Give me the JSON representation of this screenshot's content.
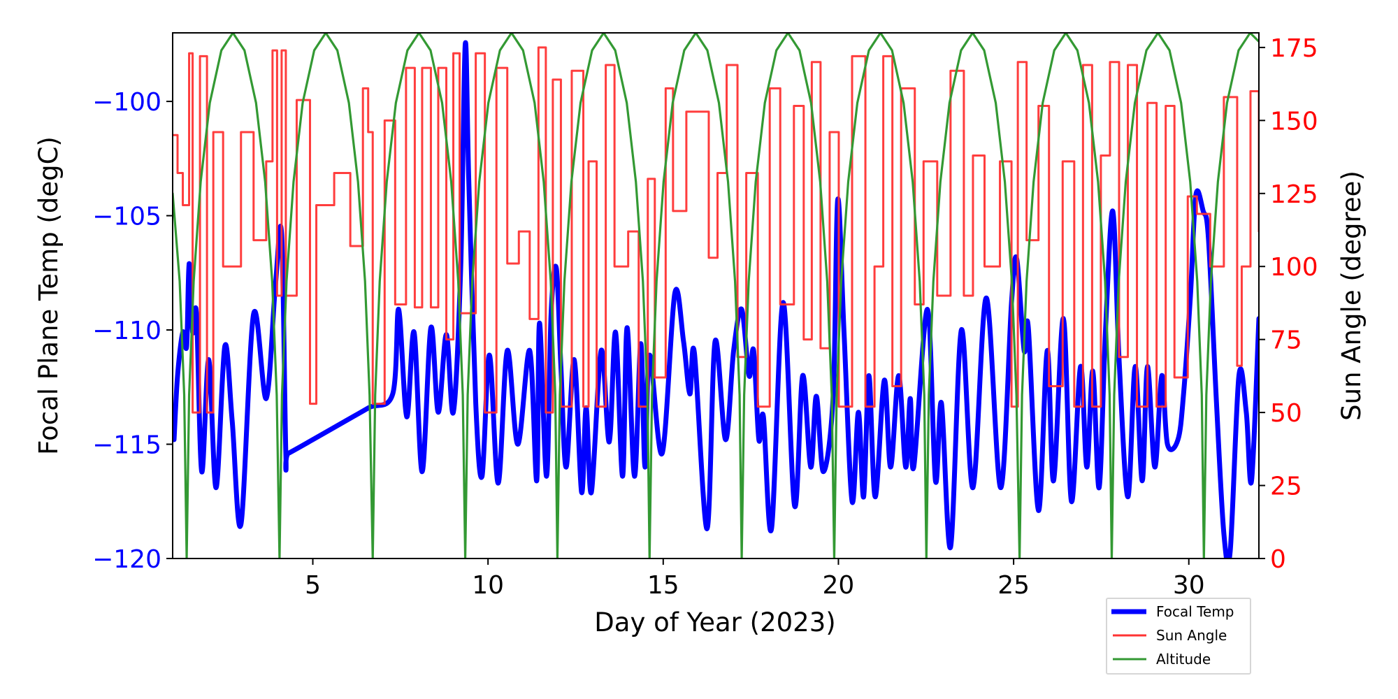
{
  "chart_data": {
    "type": "line",
    "xlabel": "Day of Year (2023)",
    "ylabel_left": "Focal Plane Temp (degC)",
    "ylabel_right": "Sun Angle (degree)",
    "xlim": [
      1,
      32
    ],
    "ylim_left": [
      -120,
      -97
    ],
    "ylim_right": [
      0,
      180
    ],
    "xticks": [
      5,
      10,
      15,
      20,
      25,
      30
    ],
    "yticks_left": [
      -120,
      -115,
      -110,
      -105,
      -100
    ],
    "yticks_right": [
      0,
      25,
      50,
      75,
      100,
      125,
      150,
      175
    ],
    "grid": false,
    "legend_position": "below-right",
    "colors": {
      "focal": "#0000ff",
      "sun": "#ff3333",
      "altitude": "#339933",
      "left_axis": "#0000ff",
      "right_axis": "#ff0000"
    },
    "series": [
      {
        "name": "Focal Temp",
        "axis": "left",
        "style": "line",
        "x": [
          1.04,
          1.14,
          1.29,
          1.4,
          1.47,
          1.57,
          1.68,
          1.83,
          2.03,
          2.24,
          2.49,
          2.7,
          2.95,
          3.31,
          3.67,
          3.93,
          4.11,
          4.23,
          4.3,
          5.0,
          5.8,
          6.6,
          7.28,
          7.45,
          7.68,
          7.89,
          8.12,
          8.37,
          8.58,
          8.81,
          9.01,
          9.22,
          9.35,
          9.45,
          9.65,
          9.83,
          10.04,
          10.29,
          10.55,
          10.85,
          11.19,
          11.39,
          11.47,
          11.67,
          11.8,
          11.95,
          12.08,
          12.23,
          12.46,
          12.67,
          12.8,
          12.95,
          13.23,
          13.46,
          13.64,
          13.84,
          13.97,
          14.18,
          14.36,
          14.48,
          14.61,
          14.97,
          15.33,
          15.58,
          15.76,
          15.89,
          16.25,
          16.48,
          16.78,
          17.01,
          17.24,
          17.45,
          17.58,
          17.73,
          17.86,
          18.09,
          18.42,
          18.75,
          18.98,
          19.21,
          19.37,
          19.57,
          19.85,
          19.98,
          20.16,
          20.39,
          20.57,
          20.72,
          20.87,
          21.05,
          21.31,
          21.49,
          21.72,
          21.92,
          22.05,
          22.15,
          22.54,
          22.77,
          22.94,
          23.2,
          23.51,
          23.84,
          24.22,
          24.63,
          24.94,
          25.09,
          25.3,
          25.42,
          25.71,
          25.96,
          26.14,
          26.42,
          26.65,
          26.91,
          27.09,
          27.26,
          27.44,
          27.62,
          27.83,
          28.01,
          28.26,
          28.47,
          28.67,
          28.82,
          29.03,
          29.23,
          29.39,
          29.69,
          29.85,
          30.05,
          30.2,
          30.41,
          30.56,
          30.79,
          31.0,
          31.18,
          31.43,
          31.64,
          31.79,
          32.0
        ],
        "y": [
          -114.8,
          -112.0,
          -110.1,
          -110.7,
          -107.1,
          -110.1,
          -109.3,
          -116.2,
          -111.3,
          -116.9,
          -110.7,
          -114.0,
          -118.5,
          -109.3,
          -113.0,
          -108.1,
          -105.8,
          -115.4,
          -115.4,
          -114.8,
          -114.1,
          -113.4,
          -112.8,
          -109.1,
          -113.8,
          -110.1,
          -116.2,
          -109.9,
          -113.6,
          -110.2,
          -113.6,
          -107.3,
          -97.5,
          -103.4,
          -113.2,
          -116.4,
          -111.1,
          -116.7,
          -110.9,
          -115.0,
          -110.9,
          -116.6,
          -109.7,
          -116.4,
          -109.3,
          -107.3,
          -111.6,
          -116.0,
          -111.3,
          -117.1,
          -113.4,
          -117.1,
          -110.9,
          -114.9,
          -110.1,
          -116.4,
          -109.9,
          -116.4,
          -110.6,
          -116.0,
          -111.1,
          -115.4,
          -108.4,
          -110.5,
          -112.8,
          -111.0,
          -118.7,
          -110.5,
          -114.8,
          -110.9,
          -109.1,
          -112.0,
          -110.9,
          -114.8,
          -113.8,
          -118.7,
          -108.8,
          -117.7,
          -112.0,
          -116.0,
          -112.9,
          -116.2,
          -112.9,
          -104.3,
          -110.1,
          -117.5,
          -113.6,
          -117.3,
          -112.0,
          -117.3,
          -112.2,
          -116.0,
          -112.0,
          -116.0,
          -113.0,
          -116.0,
          -109.1,
          -116.6,
          -113.2,
          -119.5,
          -110.0,
          -116.9,
          -108.6,
          -116.9,
          -108.8,
          -106.9,
          -110.9,
          -109.9,
          -117.9,
          -110.9,
          -116.6,
          -109.5,
          -117.5,
          -111.6,
          -116.0,
          -111.8,
          -116.9,
          -110.1,
          -104.8,
          -111.3,
          -117.3,
          -111.6,
          -116.6,
          -111.6,
          -116.0,
          -112.0,
          -115.0,
          -114.8,
          -112.8,
          -108.4,
          -104.1,
          -104.8,
          -106.0,
          -113.2,
          -118.9,
          -119.7,
          -112.0,
          -113.6,
          -116.6,
          -109.5
        ]
      },
      {
        "name": "Sun Angle",
        "axis": "right",
        "style": "steps-post",
        "x": [
          1.0,
          1.14,
          1.29,
          1.47,
          1.57,
          1.78,
          1.98,
          2.16,
          2.44,
          2.95,
          3.31,
          3.67,
          3.85,
          3.98,
          4.11,
          4.23,
          4.54,
          4.92,
          5.1,
          5.61,
          6.07,
          6.43,
          6.58,
          6.71,
          7.05,
          7.35,
          7.66,
          7.91,
          8.12,
          8.37,
          8.58,
          8.81,
          9.01,
          9.19,
          9.65,
          9.91,
          10.24,
          10.55,
          10.88,
          11.19,
          11.44,
          11.65,
          11.85,
          12.08,
          12.39,
          12.72,
          12.87,
          13.1,
          13.36,
          13.61,
          14.0,
          14.3,
          14.56,
          14.76,
          15.07,
          15.28,
          15.66,
          16.3,
          16.55,
          16.81,
          17.12,
          17.37,
          17.7,
          18.04,
          18.34,
          18.73,
          19.01,
          19.24,
          19.49,
          19.75,
          20.01,
          20.39,
          20.77,
          21.03,
          21.28,
          21.54,
          21.79,
          22.18,
          22.43,
          22.82,
          23.2,
          23.58,
          23.84,
          24.17,
          24.61,
          24.94,
          25.12,
          25.37,
          25.71,
          26.01,
          26.4,
          26.73,
          26.98,
          27.24,
          27.49,
          27.75,
          28.01,
          28.26,
          28.52,
          28.82,
          29.08,
          29.34,
          29.59,
          29.97,
          30.23,
          30.61,
          31.0,
          31.38,
          31.51,
          31.76,
          32.0
        ],
        "y": [
          145,
          132,
          121,
          173,
          50,
          172,
          50,
          146,
          100,
          146,
          109,
          136,
          174,
          90,
          174,
          90,
          157,
          53,
          121,
          132,
          107,
          161,
          146,
          53,
          150,
          87,
          168,
          86,
          168,
          86,
          168,
          75,
          173,
          84,
          173,
          50,
          168,
          101,
          112,
          82,
          175,
          50,
          164,
          52,
          167,
          52,
          136,
          52,
          169,
          100,
          112,
          52,
          130,
          62,
          161,
          119,
          153,
          103,
          132,
          169,
          69,
          132,
          52,
          161,
          87,
          155,
          75,
          170,
          72,
          146,
          52,
          172,
          52,
          100,
          172,
          59,
          161,
          87,
          136,
          90,
          167,
          90,
          138,
          100,
          136,
          52,
          170,
          109,
          155,
          59,
          136,
          52,
          169,
          52,
          138,
          170,
          69,
          169,
          52,
          156,
          52,
          155,
          62,
          124,
          118,
          100,
          158,
          66,
          100,
          160,
          112
        ]
      },
      {
        "name": "Altitude",
        "axis": "right",
        "style": "line",
        "x": [
          1.0,
          1.2,
          1.33,
          1.4,
          1.47,
          1.6,
          1.8,
          2.06,
          2.39,
          2.72,
          3.05,
          3.38,
          3.64,
          3.84,
          3.97,
          4.05,
          4.12,
          4.25,
          4.45,
          4.71,
          5.04,
          5.37,
          5.7,
          6.03,
          6.29,
          6.49,
          6.62,
          6.71,
          6.78,
          6.91,
          7.11,
          7.37,
          7.7,
          8.03,
          8.36,
          8.69,
          8.95,
          9.15,
          9.28,
          9.35,
          9.42,
          9.55,
          9.75,
          10.01,
          10.34,
          10.67,
          11.0,
          11.33,
          11.59,
          11.79,
          11.92,
          11.98,
          12.05,
          12.18,
          12.38,
          12.64,
          12.97,
          13.3,
          13.63,
          13.96,
          14.22,
          14.42,
          14.55,
          14.61,
          14.68,
          14.81,
          15.01,
          15.27,
          15.6,
          15.93,
          16.26,
          16.59,
          16.85,
          17.05,
          17.18,
          17.24,
          17.31,
          17.44,
          17.64,
          17.9,
          18.23,
          18.56,
          18.89,
          19.22,
          19.48,
          19.68,
          19.81,
          19.88,
          19.95,
          20.08,
          20.28,
          20.54,
          20.87,
          21.2,
          21.53,
          21.86,
          22.12,
          22.32,
          22.45,
          22.51,
          22.58,
          22.71,
          22.91,
          23.17,
          23.5,
          23.83,
          24.16,
          24.49,
          24.75,
          24.95,
          25.08,
          25.17,
          25.24,
          25.37,
          25.57,
          25.83,
          26.16,
          26.49,
          26.82,
          27.15,
          27.41,
          27.61,
          27.74,
          27.8,
          27.87,
          28.0,
          28.2,
          28.46,
          28.79,
          29.12,
          29.45,
          29.78,
          30.04,
          30.24,
          30.37,
          30.43,
          30.5,
          30.63,
          30.83,
          31.09,
          31.42,
          31.75,
          32.0
        ],
        "y": [
          125,
          95,
          56,
          0,
          56,
          95,
          129,
          156,
          174,
          180,
          174,
          156,
          129,
          95,
          56,
          0,
          56,
          95,
          129,
          156,
          174,
          180,
          174,
          156,
          129,
          95,
          56,
          0,
          56,
          95,
          129,
          156,
          174,
          180,
          174,
          156,
          129,
          95,
          56,
          0,
          56,
          95,
          129,
          156,
          174,
          180,
          174,
          156,
          129,
          95,
          56,
          0,
          56,
          95,
          129,
          156,
          174,
          180,
          174,
          156,
          129,
          95,
          56,
          0,
          56,
          95,
          129,
          156,
          174,
          180,
          174,
          156,
          129,
          95,
          56,
          0,
          56,
          95,
          129,
          156,
          174,
          180,
          174,
          156,
          129,
          95,
          56,
          0,
          56,
          95,
          129,
          156,
          174,
          180,
          174,
          156,
          129,
          95,
          56,
          0,
          56,
          95,
          129,
          156,
          174,
          180,
          174,
          156,
          129,
          95,
          56,
          0,
          56,
          95,
          129,
          156,
          174,
          180,
          174,
          156,
          129,
          95,
          56,
          0,
          56,
          95,
          129,
          156,
          174,
          180,
          174,
          156,
          129,
          95,
          56,
          0,
          56,
          95,
          129,
          156,
          174,
          180,
          177
        ]
      }
    ],
    "legend": [
      "Focal Temp",
      "Sun Angle",
      "Altitude"
    ]
  }
}
